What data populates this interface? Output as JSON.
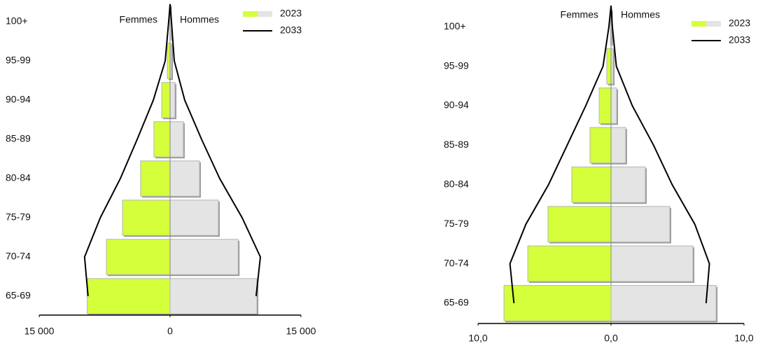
{
  "chart_data": [
    {
      "type": "pyramid",
      "categories": [
        "65-69",
        "70-74",
        "75-79",
        "80-84",
        "85-89",
        "90-94",
        "95-99",
        "100+"
      ],
      "side_labels": [
        "Femmes",
        "Hommes"
      ],
      "xlim": [
        -15000,
        15000
      ],
      "xticks": [
        {
          "value": -15000,
          "label": "15 000"
        },
        0,
        {
          "value": 15000,
          "label": "15 000"
        }
      ],
      "series": [
        {
          "name": "2023",
          "colors": [
            "#d4ff3a",
            "#e4e4e4"
          ],
          "left": [
            -9500,
            -7300,
            -5450,
            -3370,
            -1850,
            -960,
            -320,
            -50
          ],
          "right": [
            9950,
            7800,
            5530,
            3370,
            1520,
            560,
            160,
            30
          ]
        },
        {
          "name": "2033",
          "color": "#000000",
          "left": [
            -9400,
            -9800,
            -8000,
            -5700,
            -3770,
            -1920,
            -560,
            -160
          ],
          "right": [
            9860,
            10350,
            8260,
            5690,
            3610,
            1680,
            480,
            160
          ]
        }
      ]
    },
    {
      "type": "pyramid",
      "categories": [
        "65-69",
        "70-74",
        "75-79",
        "80-84",
        "85-89",
        "90-94",
        "95-99",
        "100+"
      ],
      "side_labels": [
        "Femmes",
        "Hommes"
      ],
      "xlim": [
        -10,
        10
      ],
      "xticks": [
        {
          "value": -10,
          "label": "10,0"
        },
        {
          "value": 0,
          "label": "0,0"
        },
        {
          "value": 10,
          "label": "10,0"
        }
      ],
      "series": [
        {
          "name": "2023",
          "colors": [
            "#d4ff3a",
            "#e4e4e4"
          ],
          "left": [
            -8.05,
            -6.26,
            -4.74,
            -2.95,
            -1.58,
            -0.89,
            -0.32,
            -0.05
          ],
          "right": [
            7.9,
            6.16,
            4.42,
            2.58,
            1.1,
            0.42,
            0.16,
            0.03
          ]
        },
        {
          "name": "2033",
          "color": "#000000",
          "left": [
            -7.3,
            -7.6,
            -6.4,
            -4.7,
            -3.3,
            -1.9,
            -0.6,
            -0.16
          ],
          "right": [
            7.15,
            7.4,
            6.3,
            4.6,
            3.2,
            1.6,
            0.4,
            0.1
          ]
        }
      ]
    }
  ]
}
